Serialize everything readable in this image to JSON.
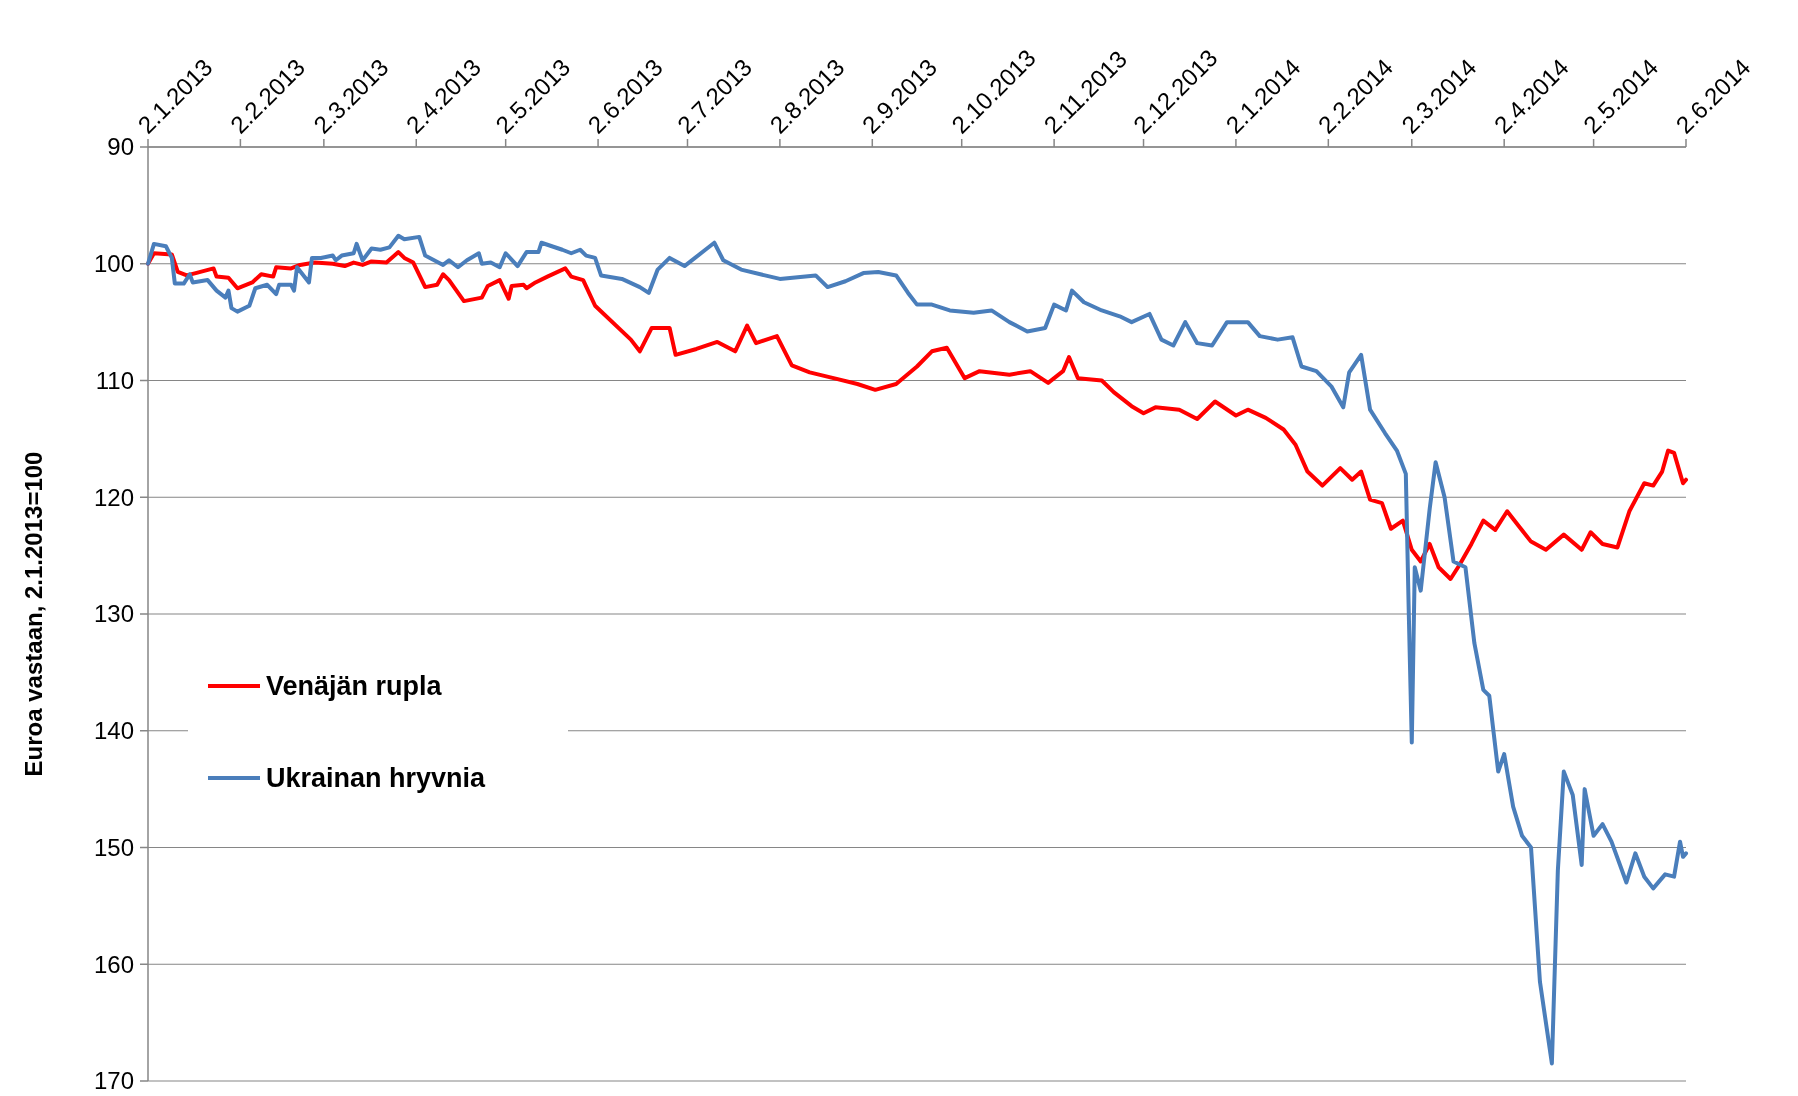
{
  "chart_data": {
    "type": "line",
    "ylabel": "Euroa vastaan, 2.1.2013=100",
    "ylim": [
      170,
      90
    ],
    "yticks": [
      90,
      100,
      110,
      120,
      130,
      140,
      150,
      160,
      170
    ],
    "xlim": [
      "2013-01-02",
      "2014-06-02"
    ],
    "xticks": [
      {
        "value": "2013-01-02",
        "label": "2.1.2013"
      },
      {
        "value": "2013-02-02",
        "label": "2.2.2013"
      },
      {
        "value": "2013-03-02",
        "label": "2.3.2013"
      },
      {
        "value": "2013-04-02",
        "label": "2.4.2013"
      },
      {
        "value": "2013-05-02",
        "label": "2.5.2013"
      },
      {
        "value": "2013-06-02",
        "label": "2.6.2013"
      },
      {
        "value": "2013-07-02",
        "label": "2.7.2013"
      },
      {
        "value": "2013-08-02",
        "label": "2.8.2013"
      },
      {
        "value": "2013-09-02",
        "label": "2.9.2013"
      },
      {
        "value": "2013-10-02",
        "label": "2.10.2013"
      },
      {
        "value": "2013-11-02",
        "label": "2.11.2013"
      },
      {
        "value": "2013-12-02",
        "label": "2.12.2013"
      },
      {
        "value": "2014-01-02",
        "label": "2.1.2014"
      },
      {
        "value": "2014-02-02",
        "label": "2.2.2014"
      },
      {
        "value": "2014-03-02",
        "label": "2.3.2014"
      },
      {
        "value": "2014-04-02",
        "label": "2.4.2014"
      },
      {
        "value": "2014-05-02",
        "label": "2.5.2014"
      },
      {
        "value": "2014-06-02",
        "label": "2.6.2014"
      }
    ],
    "grid": "y",
    "legend": "bottom left",
    "line_style": "solid",
    "series": [
      {
        "name": "Venäjän rupla",
        "color": "#ff0000",
        "x": [
          "2013-01-02",
          "2013-01-04",
          "2013-01-10",
          "2013-01-12",
          "2013-01-15",
          "2013-01-18",
          "2013-01-24",
          "2013-01-25",
          "2013-01-29",
          "2013-02-01",
          "2013-02-06",
          "2013-02-09",
          "2013-02-13",
          "2013-02-14",
          "2013-02-19",
          "2013-02-22",
          "2013-02-27",
          "2013-03-05",
          "2013-03-09",
          "2013-03-12",
          "2013-03-15",
          "2013-03-18",
          "2013-03-23",
          "2013-03-27",
          "2013-03-29",
          "2013-04-01",
          "2013-04-05",
          "2013-04-09",
          "2013-04-11",
          "2013-04-13",
          "2013-04-18",
          "2013-04-24",
          "2013-04-26",
          "2013-04-30",
          "2013-05-03",
          "2013-05-04",
          "2013-05-08",
          "2013-05-09",
          "2013-05-12",
          "2013-05-16",
          "2013-05-22",
          "2013-05-24",
          "2013-05-28",
          "2013-06-01",
          "2013-06-13",
          "2013-06-16",
          "2013-06-20",
          "2013-06-26",
          "2013-06-28",
          "2013-07-05",
          "2013-07-12",
          "2013-07-18",
          "2013-07-22",
          "2013-07-25",
          "2013-08-01",
          "2013-08-06",
          "2013-08-12",
          "2013-08-20",
          "2013-08-28",
          "2013-09-03",
          "2013-09-10",
          "2013-09-17",
          "2013-09-22",
          "2013-09-27",
          "2013-10-03",
          "2013-10-08",
          "2013-10-18",
          "2013-10-25",
          "2013-10-31",
          "2013-11-05",
          "2013-11-07",
          "2013-11-10",
          "2013-11-18",
          "2013-11-22",
          "2013-11-28",
          "2013-12-02",
          "2013-12-06",
          "2013-12-14",
          "2013-12-20",
          "2013-12-26",
          "2014-01-02",
          "2014-01-06",
          "2014-01-12",
          "2014-01-18",
          "2014-01-22",
          "2014-01-26",
          "2014-01-31",
          "2014-02-06",
          "2014-02-10",
          "2014-02-13",
          "2014-02-16",
          "2014-02-20",
          "2014-02-23",
          "2014-02-27",
          "2014-03-02",
          "2014-03-05",
          "2014-03-08",
          "2014-03-11",
          "2014-03-15",
          "2014-03-18",
          "2014-03-22",
          "2014-03-26",
          "2014-03-30",
          "2014-04-03",
          "2014-04-07",
          "2014-04-11",
          "2014-04-16",
          "2014-04-22",
          "2014-04-28",
          "2014-05-01",
          "2014-05-05",
          "2014-05-10",
          "2014-05-14",
          "2014-05-19",
          "2014-05-22",
          "2014-05-25",
          "2014-05-27",
          "2014-05-29",
          "2014-06-01",
          "2014-06-02"
        ],
        "values": [
          100,
          99.1,
          99.2,
          100.7,
          101,
          100.8,
          100.4,
          101.1,
          101.2,
          102.1,
          101.6,
          100.9,
          101.1,
          100.3,
          100.4,
          100.1,
          99.9,
          100,
          100.2,
          99.9,
          100.1,
          99.8,
          99.9,
          99,
          99.5,
          99.9,
          102,
          101.8,
          100.9,
          101.4,
          103.2,
          102.9,
          101.9,
          101.4,
          103,
          101.9,
          101.8,
          102.1,
          101.6,
          101.1,
          100.4,
          101.1,
          101.4,
          103.6,
          106.5,
          107.5,
          105.5,
          105.5,
          107.8,
          107.3,
          106.7,
          107.5,
          105.3,
          106.8,
          106.2,
          108.7,
          109.3,
          109.8,
          110.3,
          110.8,
          110.3,
          108.8,
          107.5,
          107.2,
          109.8,
          109.2,
          109.5,
          109.2,
          110.2,
          109.2,
          108,
          109.8,
          110,
          111,
          112.2,
          112.8,
          112.3,
          112.5,
          113.3,
          111.8,
          113,
          112.5,
          113.2,
          114.2,
          115.5,
          117.8,
          119,
          117.5,
          118.5,
          117.8,
          120.2,
          120.5,
          122.7,
          122,
          124.5,
          125.5,
          124,
          126,
          127,
          125.8,
          124,
          122,
          122.8,
          121.2,
          122.5,
          123.8,
          124.5,
          123.2,
          124.5,
          123,
          124,
          124.3,
          121.2,
          118.8,
          119,
          117.8,
          116,
          116.2,
          118.8,
          118.5
        ]
      },
      {
        "name": "Ukrainan hryvnia",
        "color": "#4a7ebb",
        "x": [
          "2013-01-02",
          "2013-01-04",
          "2013-01-08",
          "2013-01-10",
          "2013-01-11",
          "2013-01-14",
          "2013-01-16",
          "2013-01-17",
          "2013-01-22",
          "2013-01-25",
          "2013-01-28",
          "2013-01-29",
          "2013-01-30",
          "2013-02-01",
          "2013-02-05",
          "2013-02-07",
          "2013-02-11",
          "2013-02-14",
          "2013-02-15",
          "2013-02-19",
          "2013-02-20",
          "2013-02-21",
          "2013-02-25",
          "2013-02-26",
          "2013-03-01",
          "2013-03-05",
          "2013-03-06",
          "2013-03-08",
          "2013-03-12",
          "2013-03-13",
          "2013-03-15",
          "2013-03-18",
          "2013-03-21",
          "2013-03-24",
          "2013-03-27",
          "2013-03-29",
          "2013-04-03",
          "2013-04-05",
          "2013-04-11",
          "2013-04-13",
          "2013-04-16",
          "2013-04-19",
          "2013-04-23",
          "2013-04-24",
          "2013-04-27",
          "2013-04-30",
          "2013-05-02",
          "2013-05-06",
          "2013-05-09",
          "2013-05-13",
          "2013-05-14",
          "2013-05-21",
          "2013-05-24",
          "2013-05-27",
          "2013-05-29",
          "2013-06-01",
          "2013-06-03",
          "2013-06-10",
          "2013-06-16",
          "2013-06-19",
          "2013-06-22",
          "2013-06-26",
          "2013-07-01",
          "2013-07-08",
          "2013-07-11",
          "2013-07-14",
          "2013-07-20",
          "2013-07-28",
          "2013-08-02",
          "2013-08-14",
          "2013-08-18",
          "2013-08-24",
          "2013-08-30",
          "2013-09-04",
          "2013-09-10",
          "2013-09-14",
          "2013-09-17",
          "2013-09-22",
          "2013-09-28",
          "2013-10-06",
          "2013-10-12",
          "2013-10-18",
          "2013-10-24",
          "2013-10-30",
          "2013-11-02",
          "2013-11-06",
          "2013-11-08",
          "2013-11-12",
          "2013-11-18",
          "2013-11-24",
          "2013-11-28",
          "2013-12-04",
          "2013-12-08",
          "2013-12-12",
          "2013-12-16",
          "2013-12-20",
          "2013-12-25",
          "2013-12-30",
          "2014-01-06",
          "2014-01-10",
          "2014-01-16",
          "2014-01-21",
          "2014-01-24",
          "2014-01-29",
          "2014-02-03",
          "2014-02-07",
          "2014-02-09",
          "2014-02-13",
          "2014-02-16",
          "2014-02-21",
          "2014-02-25",
          "2014-02-28",
          "2014-03-01",
          "2014-03-02",
          "2014-03-03",
          "2014-03-05",
          "2014-03-08",
          "2014-03-10",
          "2014-03-13",
          "2014-03-16",
          "2014-03-20",
          "2014-03-23",
          "2014-03-26",
          "2014-03-28",
          "2014-03-31",
          "2014-04-02",
          "2014-04-05",
          "2014-04-08",
          "2014-04-11",
          "2014-04-14",
          "2014-04-18",
          "2014-04-20",
          "2014-04-22",
          "2014-04-25",
          "2014-04-28",
          "2014-04-29",
          "2014-05-02",
          "2014-05-05",
          "2014-05-08",
          "2014-05-13",
          "2014-05-16",
          "2014-05-19",
          "2014-05-22",
          "2014-05-26",
          "2014-05-29",
          "2014-05-31",
          "2014-06-01",
          "2014-06-02"
        ],
        "values": [
          100,
          98.3,
          98.5,
          99.5,
          101.7,
          101.7,
          100.9,
          101.6,
          101.4,
          102.3,
          102.9,
          102.3,
          103.8,
          104.1,
          103.6,
          102.1,
          101.8,
          102.6,
          101.8,
          101.8,
          102.3,
          100.3,
          101.6,
          99.5,
          99.5,
          99.3,
          99.7,
          99.3,
          99.1,
          98.3,
          99.7,
          98.7,
          98.8,
          98.6,
          97.6,
          97.9,
          97.7,
          99.3,
          100.1,
          99.7,
          100.3,
          99.7,
          99.1,
          100,
          99.9,
          100.3,
          99.1,
          100.2,
          99,
          99,
          98.2,
          98.8,
          99.1,
          98.8,
          99.3,
          99.5,
          101,
          101.3,
          102,
          102.5,
          100.5,
          99.5,
          100.2,
          98.8,
          98.2,
          99.7,
          100.5,
          101,
          101.3,
          101,
          102,
          101.5,
          100.8,
          100.7,
          101,
          102.5,
          103.5,
          103.5,
          104,
          104.2,
          104,
          105,
          105.8,
          105.5,
          103.5,
          104,
          102.3,
          103.3,
          104,
          104.5,
          105,
          104.3,
          106.5,
          107,
          105,
          106.8,
          107,
          105,
          105,
          106.2,
          106.5,
          106.3,
          108.8,
          109.2,
          110.5,
          112.3,
          109.3,
          107.8,
          112.5,
          114.5,
          116,
          118,
          130,
          141,
          126,
          128,
          121,
          117,
          120,
          125.5,
          126,
          132.5,
          136.5,
          137,
          143.5,
          142,
          146.5,
          149,
          150,
          161.5,
          168.5,
          152,
          143.5,
          145.5,
          151.5,
          145,
          149,
          148,
          149.5,
          153,
          150.5,
          152.5,
          153.5,
          152.3,
          152.5,
          149.5,
          150.8,
          150.5
        ]
      }
    ]
  }
}
